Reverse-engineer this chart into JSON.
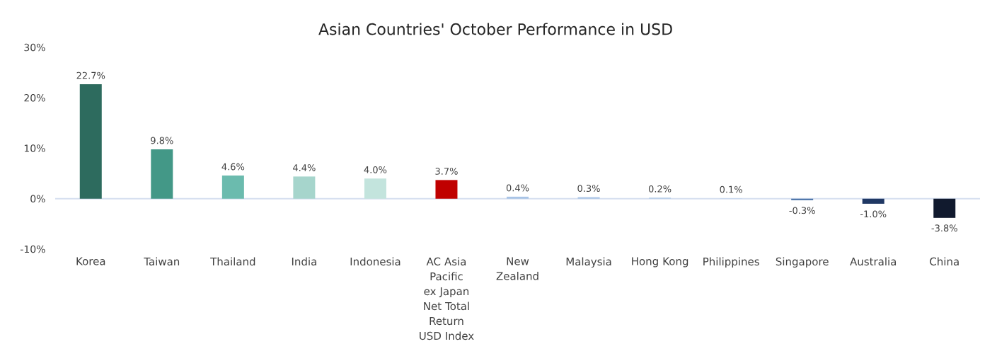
{
  "chart_data": {
    "type": "bar",
    "title": "Asian Countries' October Performance in USD",
    "categories": [
      "Korea",
      "Taiwan",
      "Thailand",
      "India",
      "Indonesia",
      "AC Asia Pacific ex Japan Net Total Return USD Index",
      "New Zealand",
      "Malaysia",
      "Hong Kong",
      "Philippines",
      "Singapore",
      "Australia",
      "China"
    ],
    "values": [
      22.7,
      9.8,
      4.6,
      4.4,
      4.0,
      3.7,
      0.4,
      0.3,
      0.2,
      0.1,
      -0.3,
      -1.0,
      -3.8
    ],
    "value_labels": [
      "22.7%",
      "9.8%",
      "4.6%",
      "4.4%",
      "4.0%",
      "3.7%",
      "0.4%",
      "0.3%",
      "0.2%",
      "0.1%",
      "-0.3%",
      "-1.0%",
      "-3.8%"
    ],
    "colors": [
      "#2d6b5e",
      "#439887",
      "#6bbbae",
      "#a6d5cc",
      "#c3e4dd",
      "#c00000",
      "#a9c4e6",
      "#a9c4e6",
      "#b4cce9",
      "#c5d7ee",
      "#4a72a8",
      "#203864",
      "#111a2e"
    ],
    "ylim": [
      -10,
      30
    ],
    "yticks": [
      {
        "value": -10,
        "label": "-10%"
      },
      {
        "value": 0,
        "label": "0%"
      },
      {
        "value": 10,
        "label": "10%"
      },
      {
        "value": 20,
        "label": "20%"
      },
      {
        "value": 30,
        "label": "30%"
      }
    ]
  }
}
